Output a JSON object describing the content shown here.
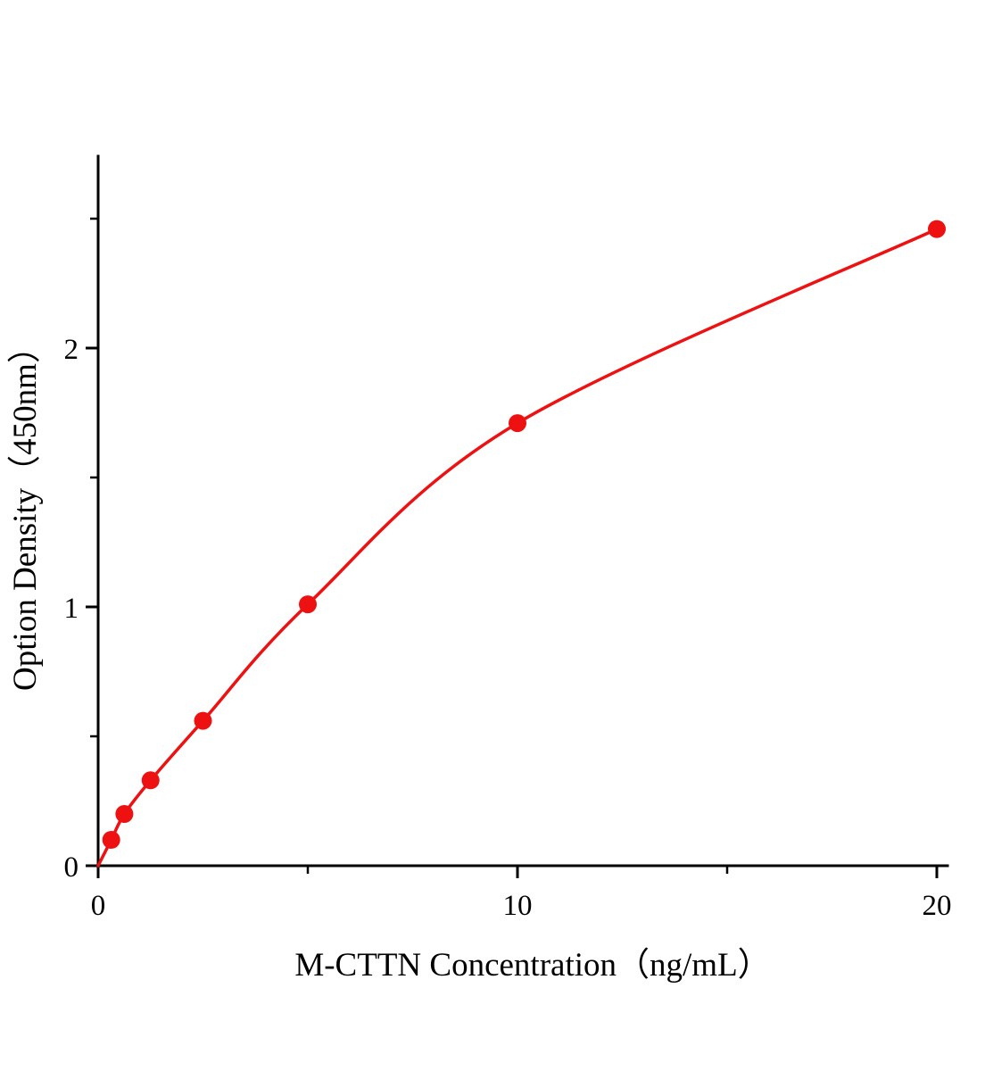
{
  "figure": {
    "title": "",
    "background": "#ffffff"
  },
  "chart_data": {
    "type": "scatter",
    "subtype": "standard-curve-with-fitted-line",
    "title": "",
    "xlabel": "M-CTTN Concentration（ng/mL）",
    "ylabel": "Option Density（450nm）",
    "x": [
      0.3125,
      0.625,
      1.25,
      2.5,
      5,
      10,
      20
    ],
    "y": [
      0.1,
      0.2,
      0.33,
      0.56,
      1.01,
      1.71,
      2.46
    ],
    "curve_through_origin": true,
    "xlim": [
      0,
      21
    ],
    "ylim": [
      0,
      2.74
    ],
    "x_ticks": {
      "major": [
        0,
        10,
        20
      ],
      "minor": [
        5,
        15
      ]
    },
    "y_ticks": {
      "major": [
        0,
        1,
        2
      ],
      "minor": [
        0.5,
        1.5,
        2.5
      ]
    },
    "grid": false,
    "legend": null,
    "colors": {
      "curve": "#ee1111",
      "marker": "#ee1111",
      "axis": "#000000"
    }
  }
}
